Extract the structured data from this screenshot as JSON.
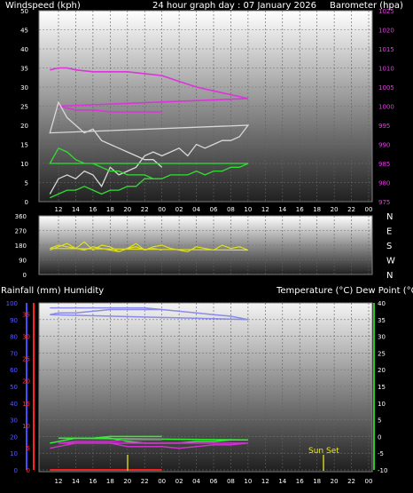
{
  "chart_data": [
    {
      "type": "line",
      "title": "24 hour graph day : 07 January 2026",
      "y_left_label": "Windspeed (kph)",
      "y_right_label": "Barometer (hpa)",
      "x_ticks": [
        "12",
        "14",
        "16",
        "18",
        "20",
        "22",
        "00",
        "02",
        "04",
        "06",
        "08",
        "10",
        "12",
        "14",
        "16",
        "18",
        "20",
        "22",
        "00"
      ],
      "y_left_ticks": [
        "0",
        "5",
        "10",
        "15",
        "20",
        "25",
        "30",
        "35",
        "40",
        "45",
        "50"
      ],
      "y_right_ticks": [
        "975",
        "980",
        "985",
        "990",
        "995",
        "1000",
        "1005",
        "1010",
        "1015",
        "1020",
        "1025"
      ],
      "ylim_left": [
        0,
        50
      ],
      "ylim_right": [
        975,
        1025
      ],
      "series": [
        {
          "axis": "right",
          "color": "#dd33dd",
          "x": [
            11,
            12,
            13,
            14,
            16,
            18,
            20,
            22,
            0,
            2,
            4,
            6,
            8,
            10,
            12,
            14,
            16,
            18,
            20,
            22,
            0
          ],
          "values": [
            1009.5,
            1010,
            1010,
            1009.5,
            1009,
            1009,
            1009,
            1008.5,
            1008,
            1006.5,
            1005,
            1004,
            1003,
            1002,
            1000,
            999,
            999,
            998.5,
            998.5,
            998.5,
            998.5
          ]
        },
        {
          "axis": "left",
          "color": "#d8d8d8",
          "x": [
            11,
            12,
            13,
            14,
            15,
            16,
            17,
            18,
            19,
            20,
            21,
            22,
            23,
            0,
            1,
            2,
            3,
            4,
            5,
            6,
            7,
            8,
            9,
            10,
            11,
            12,
            13,
            14,
            15,
            16,
            17,
            18,
            19,
            20,
            21,
            22,
            23,
            0
          ],
          "values": [
            2,
            6,
            7,
            6,
            8,
            7,
            4,
            9,
            7,
            8,
            9,
            12,
            13,
            12,
            13,
            14,
            12,
            15,
            14,
            15,
            16,
            16,
            17,
            20,
            18,
            26,
            22,
            20,
            18,
            19,
            16,
            15,
            14,
            13,
            12,
            11,
            11,
            9
          ]
        },
        {
          "axis": "left",
          "color": "#33dd33",
          "x": [
            11,
            12,
            13,
            14,
            15,
            16,
            17,
            18,
            19,
            20,
            21,
            22,
            23,
            0,
            1,
            2,
            3,
            4,
            5,
            6,
            7,
            8,
            9,
            10,
            11,
            12,
            13,
            14,
            15,
            16,
            17,
            18,
            19,
            20,
            21,
            22,
            23,
            0
          ],
          "values": [
            1,
            2,
            3,
            3,
            4,
            3,
            2,
            3,
            3,
            4,
            4,
            6,
            6,
            6,
            7,
            7,
            7,
            8,
            7,
            8,
            8,
            9,
            9,
            10,
            10,
            14,
            13,
            11,
            10,
            10,
            9,
            8,
            8,
            7,
            7,
            7,
            6,
            6
          ]
        }
      ]
    },
    {
      "type": "line",
      "y_left_ticks": [
        "0",
        "90",
        "180",
        "270",
        "360"
      ],
      "y_right_ticks": [
        "N",
        "W",
        "S",
        "E",
        "N"
      ],
      "ylim": [
        0,
        360
      ],
      "series": [
        {
          "color": "#e0e020",
          "x": [
            11,
            12,
            13,
            14,
            15,
            16,
            17,
            18,
            19,
            20,
            21,
            22,
            23,
            0,
            1,
            2,
            3,
            4,
            5,
            6,
            7,
            8,
            9,
            10,
            11,
            12,
            13,
            14,
            15,
            16,
            17,
            18,
            19,
            20,
            21,
            22,
            23,
            0
          ],
          "values": [
            150,
            170,
            190,
            160,
            200,
            150,
            180,
            170,
            140,
            160,
            190,
            150,
            170,
            180,
            160,
            150,
            140,
            170,
            160,
            150,
            180,
            160,
            170,
            150,
            160,
            180,
            170,
            160,
            150,
            170,
            160,
            150,
            140,
            160,
            170,
            150,
            160,
            150
          ]
        }
      ]
    },
    {
      "type": "line",
      "y_left_label": "Rainfall (mm)  Humidity",
      "y_right_label": "Temperature (°C) Dew Point (°C)",
      "annotation": "Sun Set",
      "x_ticks": [
        "12",
        "14",
        "16",
        "18",
        "20",
        "22",
        "00",
        "02",
        "04",
        "06",
        "08",
        "10",
        "12",
        "14",
        "16",
        "18",
        "20",
        "22",
        "00"
      ],
      "humidity_ticks": [
        "0",
        "10",
        "20",
        "30",
        "40",
        "50",
        "60",
        "70",
        "80",
        "90",
        "100"
      ],
      "rain_ticks": [
        "0",
        "5",
        "10",
        "15",
        "20",
        "25",
        "30",
        "35"
      ],
      "temp_ticks": [
        "-10",
        "-5",
        "0",
        "5",
        "10",
        "15",
        "20",
        "25",
        "30",
        "35",
        "40"
      ],
      "ylim_humidity": [
        0,
        100
      ],
      "ylim_temperature": [
        -10,
        40
      ],
      "series": [
        {
          "axis": "humidity",
          "color": "#8a8ae8",
          "x": [
            11,
            12,
            14,
            16,
            18,
            20,
            22,
            0,
            2,
            4,
            6,
            8,
            9,
            10,
            11,
            12,
            14,
            16,
            18,
            20,
            22,
            0
          ],
          "values": [
            97,
            97,
            97,
            97,
            97,
            97,
            97,
            96,
            95,
            94,
            93,
            92,
            91,
            90,
            93,
            94,
            94,
            95,
            96,
            96,
            96,
            96
          ]
        },
        {
          "axis": "temperature",
          "color": "#33ee33",
          "x": [
            11,
            12,
            14,
            16,
            18,
            19,
            20,
            22,
            0,
            2,
            4,
            6,
            8,
            10,
            12,
            14,
            16,
            18,
            20,
            22,
            0
          ],
          "values": [
            -2,
            -1.5,
            -0.5,
            -0.5,
            -0.5,
            -1,
            -1.5,
            -2,
            -2,
            -2,
            -1.5,
            -1.5,
            -1,
            -1,
            -0.5,
            -0.5,
            -0.5,
            0,
            0,
            0,
            0
          ]
        },
        {
          "axis": "temperature",
          "color": "#cc33cc",
          "x": [
            11,
            12,
            14,
            16,
            18,
            19,
            20,
            22,
            0,
            2,
            4,
            6,
            8,
            10,
            12,
            14,
            16,
            18,
            20,
            22,
            0
          ],
          "values": [
            -3.5,
            -3,
            -2,
            -2,
            -2,
            -2.5,
            -3,
            -3,
            -3,
            -3.5,
            -3,
            -2.5,
            -2.5,
            -2,
            -2,
            -1.5,
            -1.5,
            -1.5,
            -1,
            -1,
            -1
          ]
        },
        {
          "axis": "temperature",
          "color": "#ee2222",
          "x": [
            11,
            0
          ],
          "values": [
            -10,
            -10
          ]
        }
      ]
    }
  ]
}
